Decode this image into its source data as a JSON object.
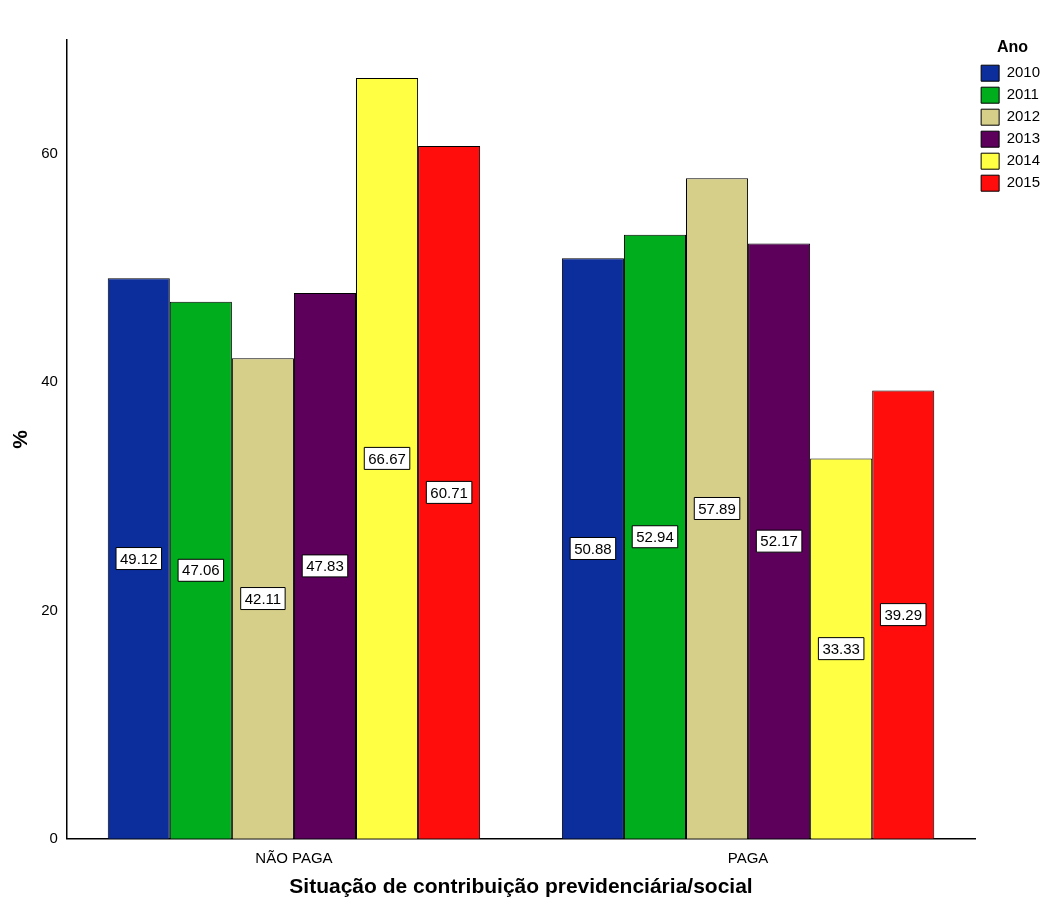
{
  "chart_data": {
    "type": "bar",
    "xlabel": "Situação de contribuição previdenciária/social",
    "ylabel": "%",
    "legend_title": "Ano",
    "categories": [
      "NÃO PAGA",
      "PAGA"
    ],
    "series": [
      {
        "name": "2010",
        "color": "#0c2e9c",
        "values": [
          49.12,
          50.88
        ]
      },
      {
        "name": "2011",
        "color": "#00ad1c",
        "values": [
          47.06,
          52.94
        ]
      },
      {
        "name": "2012",
        "color": "#d6cf8a",
        "values": [
          42.11,
          57.89
        ]
      },
      {
        "name": "2013",
        "color": "#5c005c",
        "values": [
          47.83,
          52.17
        ]
      },
      {
        "name": "2014",
        "color": "#ffff44",
        "values": [
          66.67,
          33.33
        ]
      },
      {
        "name": "2015",
        "color": "#ff0d0d",
        "values": [
          60.71,
          39.29
        ]
      }
    ],
    "ylim": [
      0,
      70
    ],
    "yticks": [
      0,
      20,
      40,
      60
    ],
    "grid": false,
    "legend": "top right",
    "data_labels": true
  }
}
